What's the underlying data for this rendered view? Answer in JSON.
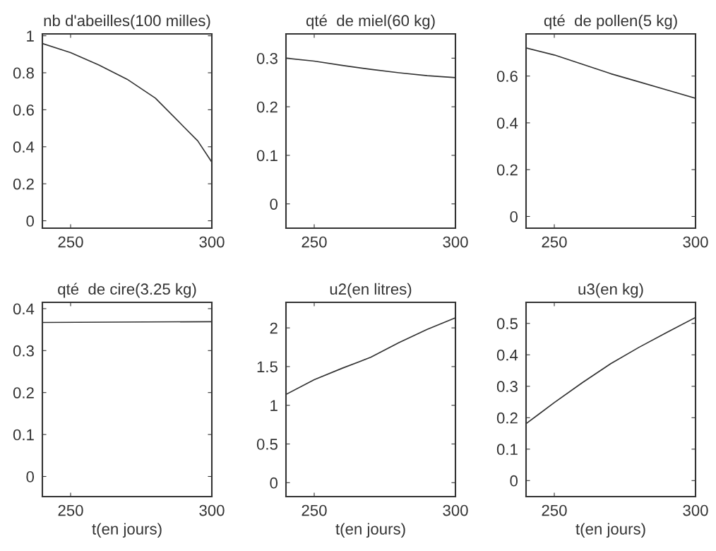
{
  "chart_data": [
    {
      "type": "line",
      "title": "nb d'abeilles(100 milles)",
      "x": [
        240,
        250,
        260,
        270,
        280,
        290,
        295,
        300
      ],
      "values": [
        0.958,
        0.909,
        0.842,
        0.765,
        0.663,
        0.509,
        0.432,
        0.317
      ],
      "color": "#333333",
      "xlim": [
        240,
        300
      ],
      "xticks": [
        250,
        300
      ],
      "ylim": [
        -0.04,
        1.01
      ],
      "yticks": [
        0,
        0.2,
        0.4,
        0.6,
        0.8,
        1
      ],
      "grid": false,
      "legend": false
    },
    {
      "type": "line",
      "title": "qté  de miel(60 kg)",
      "x": [
        240,
        250,
        260,
        270,
        280,
        290,
        300
      ],
      "values": [
        0.3,
        0.294,
        0.285,
        0.277,
        0.27,
        0.264,
        0.26
      ],
      "color": "#333333",
      "xlim": [
        240,
        300
      ],
      "xticks": [
        250,
        300
      ],
      "ylim": [
        -0.05,
        0.35
      ],
      "yticks": [
        0,
        0.1,
        0.2,
        0.3
      ],
      "grid": false,
      "legend": false
    },
    {
      "type": "line",
      "title": "qté  de pollen(5 kg)",
      "x": [
        240,
        250,
        260,
        270,
        280,
        290,
        300
      ],
      "values": [
        0.72,
        0.69,
        0.65,
        0.61,
        0.575,
        0.54,
        0.505
      ],
      "color": "#333333",
      "xlim": [
        240,
        300
      ],
      "xticks": [
        250,
        300
      ],
      "ylim": [
        -0.05,
        0.78
      ],
      "yticks": [
        0,
        0.2,
        0.4,
        0.6
      ],
      "grid": false,
      "legend": false
    },
    {
      "type": "line",
      "title": "qté  de cire(3.25 kg)",
      "xlabel": "t(en jours)",
      "x": [
        240,
        300
      ],
      "values": [
        0.367,
        0.369
      ],
      "color": "#333333",
      "xlim": [
        240,
        300
      ],
      "xticks": [
        250,
        300
      ],
      "ylim": [
        -0.048,
        0.415
      ],
      "yticks": [
        0,
        0.1,
        0.2,
        0.3,
        0.4
      ],
      "grid": false,
      "legend": false
    },
    {
      "type": "line",
      "title": "u2(en litres)",
      "xlabel": "t(en jours)",
      "x": [
        240,
        250,
        260,
        270,
        280,
        290,
        300
      ],
      "values": [
        1.14,
        1.33,
        1.48,
        1.62,
        1.81,
        1.98,
        2.13
      ],
      "color": "#333333",
      "xlim": [
        240,
        300
      ],
      "xticks": [
        250,
        300
      ],
      "ylim": [
        -0.18,
        2.33
      ],
      "yticks": [
        0,
        0.5,
        1,
        1.5,
        2
      ],
      "grid": false,
      "legend": false
    },
    {
      "type": "line",
      "title": "u3(en kg)",
      "xlabel": "t(en jours)",
      "x": [
        240,
        250,
        260,
        270,
        280,
        290,
        300
      ],
      "values": [
        0.181,
        0.248,
        0.312,
        0.372,
        0.424,
        0.472,
        0.519
      ],
      "color": "#333333",
      "xlim": [
        240,
        300
      ],
      "xticks": [
        250,
        300
      ],
      "ylim": [
        -0.051,
        0.567
      ],
      "yticks": [
        0,
        0.1,
        0.2,
        0.3,
        0.4,
        0.5
      ],
      "grid": false,
      "legend": false
    }
  ]
}
